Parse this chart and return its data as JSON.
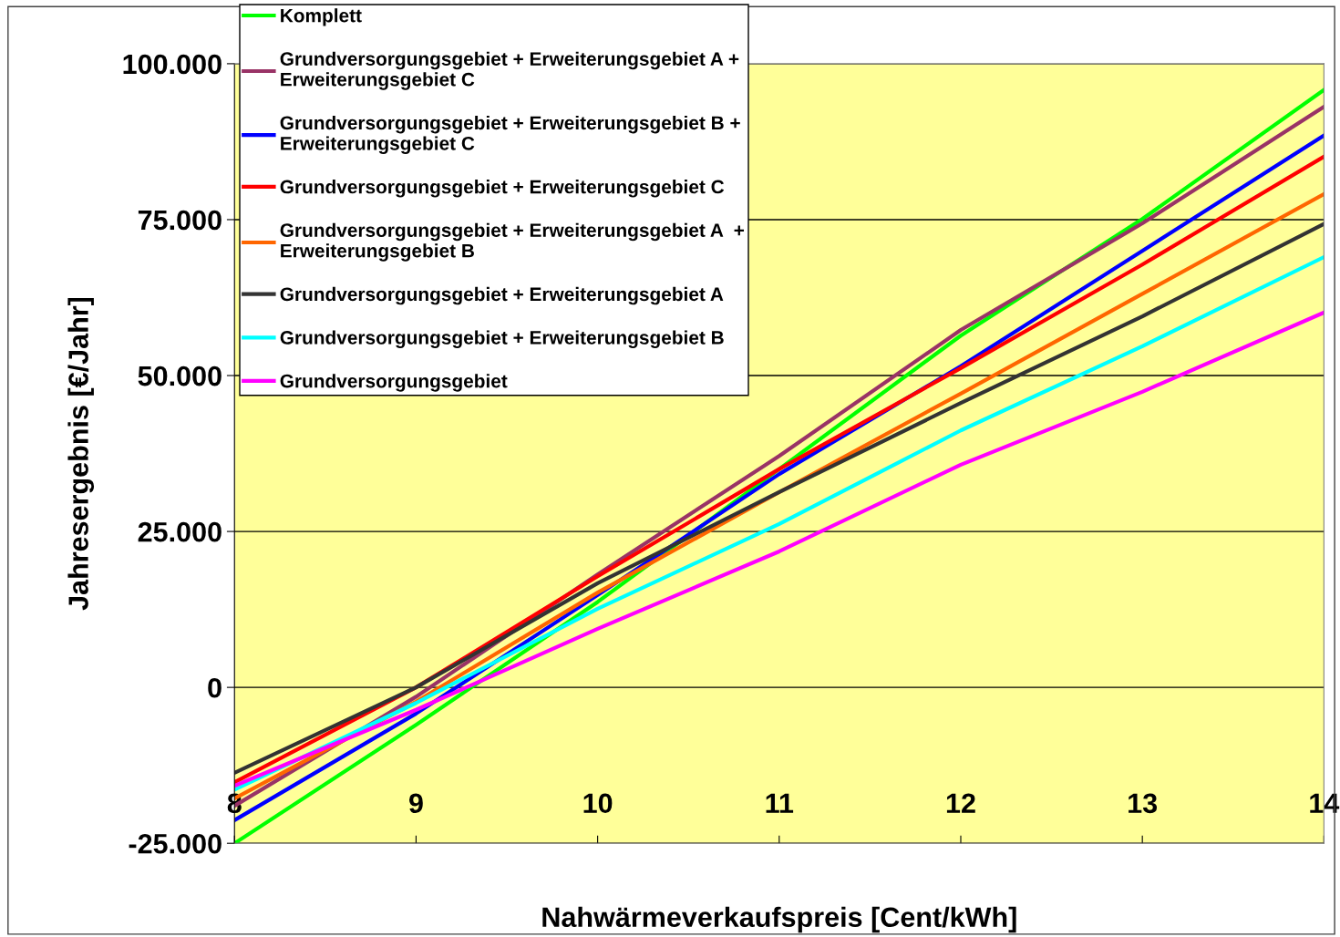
{
  "chart_data": {
    "type": "line",
    "xlabel": "Nahwärmeverkaufspreis [Cent/kWh]",
    "ylabel": "Jahresergebnis [€/Jahr]",
    "x": [
      8,
      9,
      10,
      11,
      12,
      13,
      14
    ],
    "xlim": [
      8,
      14
    ],
    "xticks": [
      8,
      9,
      10,
      11,
      12,
      13,
      14
    ],
    "ylim": [
      -25000,
      100000
    ],
    "yticks": [
      {
        "value": -25000,
        "label": "-25.000"
      },
      {
        "value": 0,
        "label": "0"
      },
      {
        "value": 25000,
        "label": "25.000"
      },
      {
        "value": 50000,
        "label": "50.000"
      },
      {
        "value": 75000,
        "label": "75.000"
      },
      {
        "value": 100000,
        "label": "100.000"
      }
    ],
    "grid": "y",
    "legend": "top left",
    "marker": "none",
    "line_style": "solid",
    "series": [
      {
        "name": "Komplett",
        "color": "#00ff00",
        "values": [
          -25000,
          -6000,
          13700,
          35000,
          56400,
          75100,
          95800
        ]
      },
      {
        "name": "Grundversorgungsgebiet + Erweiterungsgebiet A +\nErweiterungsgebiet C",
        "color": "#993366",
        "values": [
          -19000,
          -1500,
          18100,
          37100,
          57300,
          74400,
          93100
        ]
      },
      {
        "name": "Grundversorgungsgebiet + Erweiterungsgebiet B +\nErweiterungsgebiet C",
        "color": "#0000ff",
        "values": [
          -21300,
          -4200,
          14800,
          34200,
          51500,
          70000,
          88500
        ]
      },
      {
        "name": "Grundversorgungsgebiet + Erweiterungsgebiet C",
        "color": "#ff0000",
        "values": [
          -15200,
          0,
          17800,
          35000,
          51200,
          67800,
          85100
        ]
      },
      {
        "name": "Grundversorgungsgebiet + Erweiterungsgebiet A  +\nErweiterungsgebiet B",
        "color": "#ff6600",
        "values": [
          -17800,
          -2300,
          15200,
          31300,
          47100,
          63100,
          79100
        ]
      },
      {
        "name": "Grundversorgungsgebiet + Erweiterungsgebiet A",
        "color": "#333333",
        "values": [
          -13700,
          0,
          16700,
          31300,
          45600,
          59500,
          74300
        ]
      },
      {
        "name": "Grundversorgungsgebiet + Erweiterungsgebiet B",
        "color": "#00ffff",
        "values": [
          -16400,
          -2500,
          12600,
          26200,
          41200,
          54700,
          69000
        ]
      },
      {
        "name": "Grundversorgungsgebiet",
        "color": "#ff00ff",
        "values": [
          -15800,
          -3600,
          9400,
          21800,
          35700,
          47400,
          60100
        ]
      }
    ]
  }
}
